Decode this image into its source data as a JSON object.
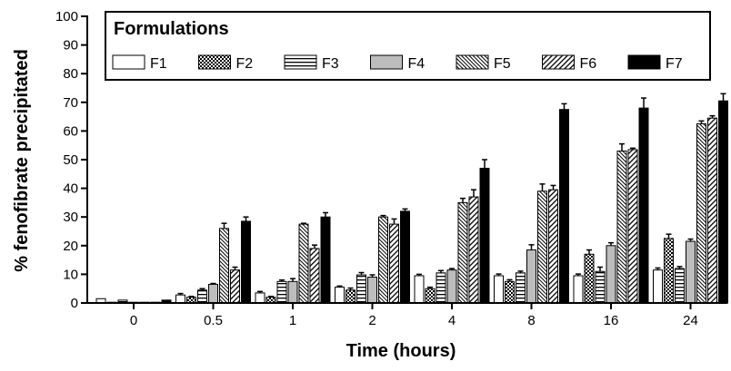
{
  "chart_data": {
    "type": "bar",
    "xlabel": "Time (hours)",
    "ylabel": "% fenofibrate precipitated",
    "ylim": [
      0,
      100
    ],
    "yticks": [
      0,
      10,
      20,
      30,
      40,
      50,
      60,
      70,
      80,
      90,
      100
    ],
    "categories": [
      "0",
      "0.5",
      "1",
      "2",
      "4",
      "8",
      "16",
      "24"
    ],
    "legend": {
      "title": "Formulations",
      "placement": "top-left inside plot"
    },
    "series": [
      {
        "name": "F1",
        "pattern": "white",
        "values": [
          1.5,
          2.8,
          3.5,
          5.5,
          9.5,
          9.5,
          9.5,
          11.5
        ],
        "errors": [
          0,
          0.5,
          0.5,
          0.4,
          0.5,
          0.6,
          0.6,
          0.7
        ]
      },
      {
        "name": "F2",
        "pattern": "checker",
        "values": [
          0.2,
          2.0,
          2.0,
          4.5,
          5.0,
          7.5,
          17.0,
          22.5
        ],
        "errors": [
          0,
          0.3,
          0.3,
          0.7,
          0.5,
          0.6,
          1.5,
          1.5
        ]
      },
      {
        "name": "F3",
        "pattern": "horizontal",
        "values": [
          1.0,
          4.5,
          7.5,
          9.8,
          10.5,
          10.5,
          11.0,
          12.0
        ],
        "errors": [
          0,
          0.5,
          0.5,
          0.8,
          0.8,
          0.6,
          1.5,
          0.7
        ]
      },
      {
        "name": "F4",
        "pattern": "gray",
        "values": [
          0.2,
          6.5,
          7.5,
          9.0,
          11.5,
          18.5,
          20.0,
          21.5
        ],
        "errors": [
          0,
          0.3,
          1.0,
          0.8,
          0.5,
          1.8,
          1.0,
          0.8
        ]
      },
      {
        "name": "F5",
        "pattern": "diag-fine",
        "values": [
          0.2,
          26.0,
          27.5,
          30.0,
          35.0,
          39.0,
          53.0,
          62.5
        ],
        "errors": [
          0,
          1.8,
          0.3,
          0.5,
          1.5,
          2.5,
          2.5,
          1.0
        ]
      },
      {
        "name": "F6",
        "pattern": "diag-back",
        "values": [
          0.2,
          11.5,
          19.0,
          27.5,
          37.0,
          39.5,
          53.5,
          64.5
        ],
        "errors": [
          0,
          1.0,
          1.2,
          1.8,
          2.5,
          1.5,
          0.5,
          0.8
        ]
      },
      {
        "name": "F7",
        "pattern": "black",
        "values": [
          1.0,
          28.5,
          30.0,
          32.0,
          47.0,
          67.5,
          68.0,
          70.5
        ],
        "errors": [
          0,
          1.5,
          1.5,
          0.8,
          3.0,
          2.0,
          3.5,
          2.5
        ]
      }
    ]
  }
}
